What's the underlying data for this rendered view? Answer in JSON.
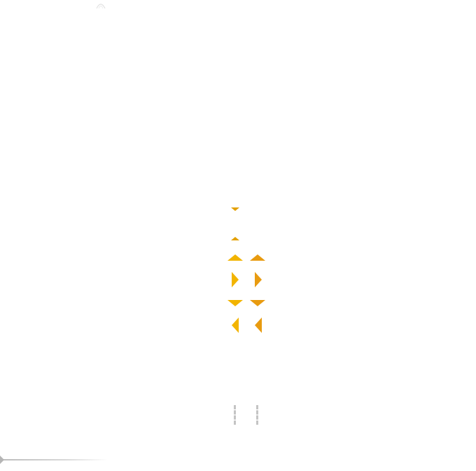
{
  "colors": {
    "arrow_primary": "#f2b400",
    "arrow_secondary": "#e89b10",
    "handle": "#c4c4c4",
    "scrubber": "#bdbdbd"
  },
  "icons": {
    "top": "loading-arc-icon",
    "collapse": "caret-down-icon",
    "expand": "caret-up-icon",
    "up": "arrow-up-icon",
    "right": "arrow-right-icon",
    "down": "arrow-down-icon",
    "left": "arrow-left-icon",
    "handle": "drag-handle-icon",
    "scrubber": "play-marker-icon"
  }
}
